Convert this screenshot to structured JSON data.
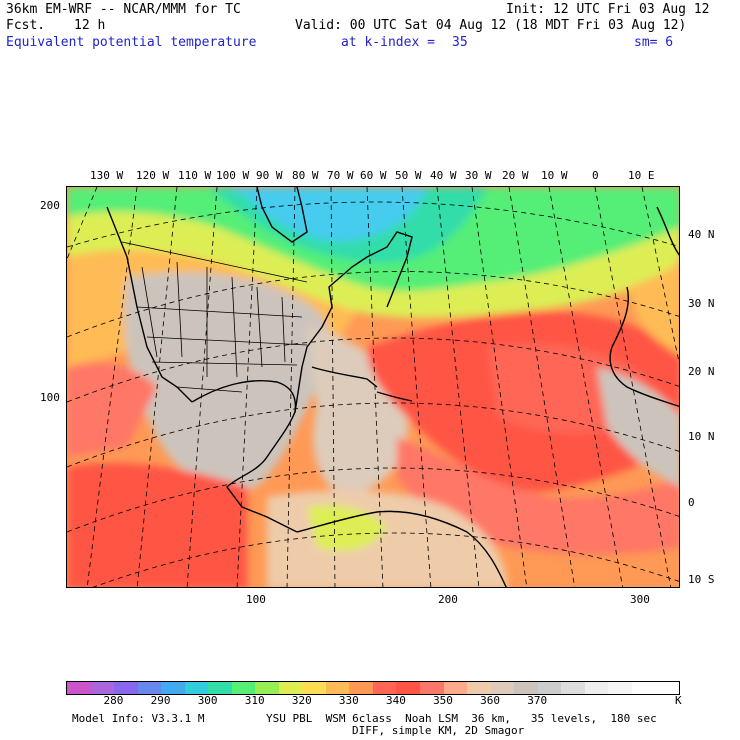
{
  "header": {
    "model_title": "36km EM-WRF -- NCAR/MMM for TC",
    "init": "Init: 12 UTC Fri 03 Aug 12",
    "fcst_label": "Fcst.",
    "fcst_value": "12 h",
    "valid": "Valid: 00 UTC Sat 04 Aug 12 (18 MDT Fri 03 Aug 12)",
    "field": "Equivalent potential temperature",
    "level": "at k-index =",
    "level_value": "35",
    "smooth": "sm= 6"
  },
  "map": {
    "field": "theta-e",
    "lon_labels": [
      "130 W",
      "120 W",
      "110 W",
      "100 W",
      "90 W",
      "80 W",
      "70 W",
      "60 W",
      "50 W",
      "40 W",
      "30 W",
      "20 W",
      "10 W",
      "0",
      "10 E"
    ],
    "lat_labels": [
      "40 N",
      "30 N",
      "20 N",
      "10 N",
      "0",
      "10 S"
    ],
    "x_ticks": [
      "100",
      "200",
      "300"
    ],
    "y_ticks": [
      "200",
      "100"
    ]
  },
  "colorbar": {
    "colors": [
      "#cc55cc",
      "#aa66dd",
      "#8866ee",
      "#6688ee",
      "#44aaee",
      "#33ccdd",
      "#33ddaa",
      "#55ee77",
      "#99ee55",
      "#ddee55",
      "#ffdd55",
      "#ffbb55",
      "#ff9955",
      "#ff6655",
      "#ff5544",
      "#ff7766",
      "#ffaa88",
      "#eeccaa",
      "#ddccbb",
      "#ccc4bc",
      "#cccccc",
      "#dddddd",
      "#eeeeee",
      "#f6f6f6",
      "#ffffff",
      "#ffffff"
    ],
    "labels": [
      "280",
      "290",
      "300",
      "310",
      "320",
      "330",
      "340",
      "350",
      "360",
      "370"
    ],
    "unit": "K"
  },
  "footer": {
    "model_info": "Model Info: V3.3.1 M",
    "physics": "YSU PBL  WSM 6class  Noah LSM  36 km,   35 levels,  180 sec",
    "diff": "DIFF, simple KM, 2D Smagor"
  }
}
